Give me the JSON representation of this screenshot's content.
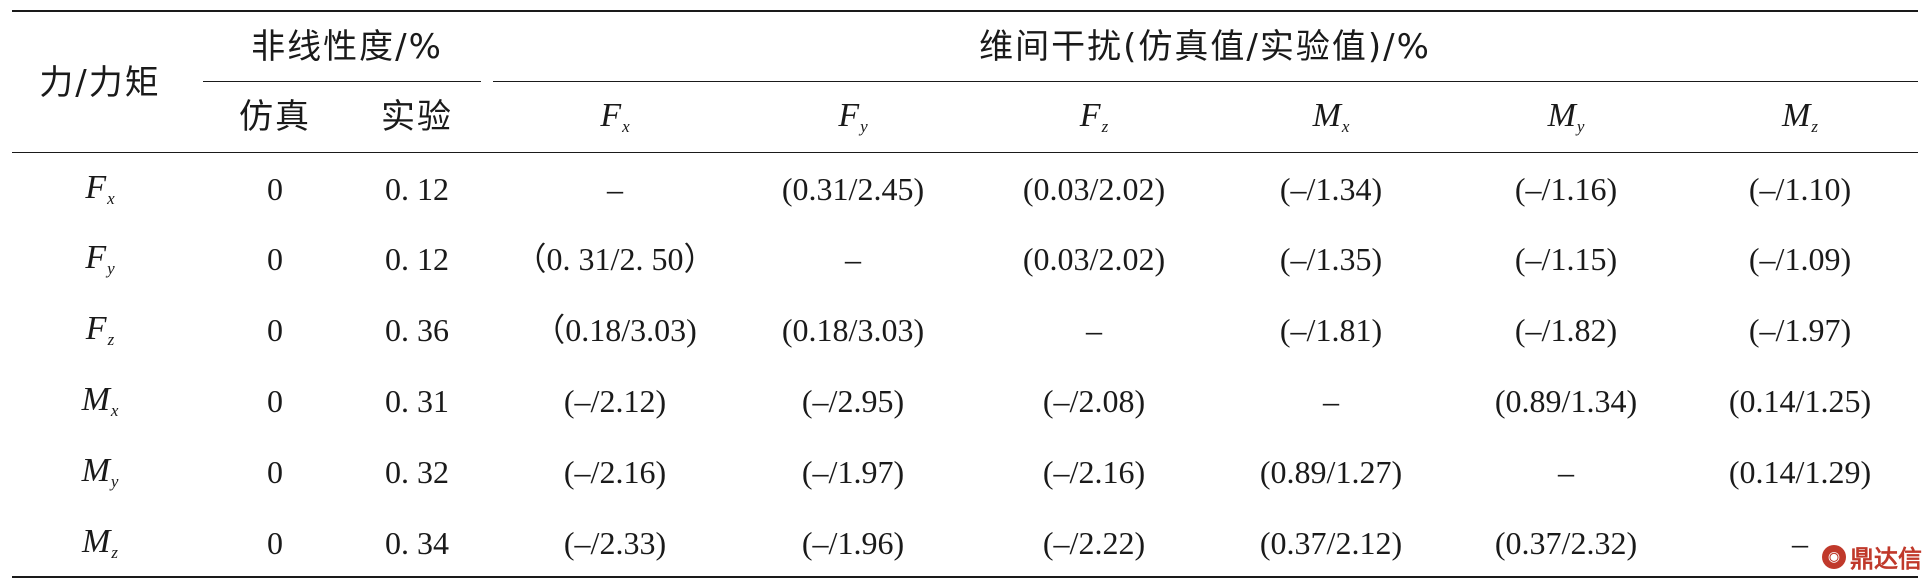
{
  "table": {
    "header": {
      "rowhead": "力/力矩",
      "nonlinearity": "非线性度/%",
      "crosstalk": "维间干扰(仿真值/实验值)/%",
      "sim": "仿真",
      "exp": "实验",
      "cols": [
        {
          "sym": "F",
          "sub": "x"
        },
        {
          "sym": "F",
          "sub": "y"
        },
        {
          "sym": "F",
          "sub": "z"
        },
        {
          "sym": "M",
          "sub": "x"
        },
        {
          "sym": "M",
          "sub": "y"
        },
        {
          "sym": "M",
          "sub": "z"
        }
      ]
    },
    "rows": [
      {
        "sym": "F",
        "sub": "x",
        "sim": "0",
        "exp": "0. 12",
        "vals": [
          "–",
          "(0.31/2.45)",
          "(0.03/2.02)",
          "(–/1.34)",
          "(–/1.16)",
          "(–/1.10)"
        ]
      },
      {
        "sym": "F",
        "sub": "y",
        "sim": "0",
        "exp": "0. 12",
        "vals": [
          "（0. 31/2. 50）",
          "–",
          "(0.03/2.02)",
          "(–/1.35)",
          "(–/1.15)",
          "(–/1.09)"
        ]
      },
      {
        "sym": "F",
        "sub": "z",
        "sim": "0",
        "exp": "0. 36",
        "vals": [
          "（0.18/3.03)",
          "(0.18/3.03)",
          "–",
          "(–/1.81)",
          "(–/1.82)",
          "(–/1.97)"
        ]
      },
      {
        "sym": "M",
        "sub": "x",
        "sim": "0",
        "exp": "0. 31",
        "vals": [
          "(–/2.12)",
          "(–/2.95)",
          "(–/2.08)",
          "–",
          "(0.89/1.34)",
          "(0.14/1.25)"
        ]
      },
      {
        "sym": "M",
        "sub": "y",
        "sim": "0",
        "exp": "0. 32",
        "vals": [
          "(–/2.16)",
          "(–/1.97)",
          "(–/2.16)",
          "(0.89/1.27)",
          "–",
          "(0.14/1.29)"
        ]
      },
      {
        "sym": "M",
        "sub": "z",
        "sim": "0",
        "exp": "0. 34",
        "vals": [
          "(–/2.33)",
          "(–/1.96)",
          "(–/2.22)",
          "(0.37/2.12)",
          "(0.37/2.32)",
          "–"
        ]
      }
    ]
  },
  "watermark": {
    "text": "鼎达信",
    "color": "#c0392b"
  }
}
